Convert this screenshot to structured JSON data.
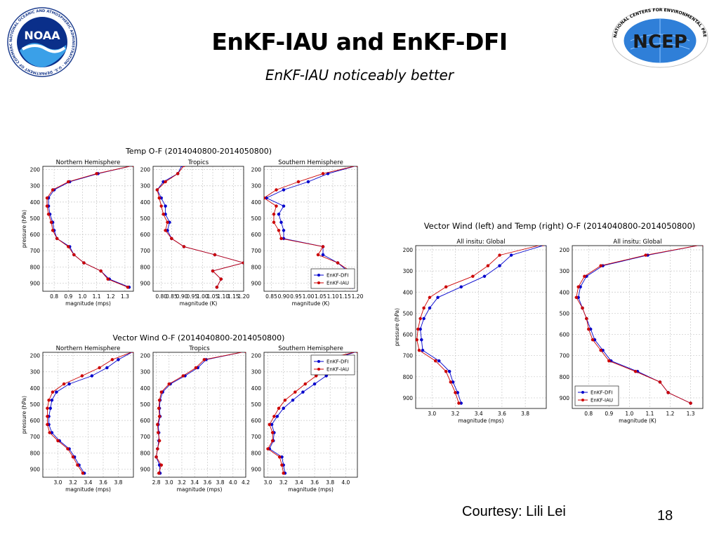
{
  "slide": {
    "title": "EnKF-IAU and EnKF-DFI",
    "subtitle": "EnKF-IAU noticeably better",
    "courtesy": "Courtesy: Lili Lei",
    "page_number": "18"
  },
  "logos": {
    "noaa": {
      "name": "noaa-logo",
      "text": "NOAA",
      "ring_text": "NATIONAL OCEANIC AND ATMOSPHERIC ADMINISTRATION · U.S. DEPARTMENT OF COMMERCE"
    },
    "ncep": {
      "name": "ncep-logo",
      "text": "NCEP",
      "ring_text": "NATIONAL CENTERS FOR ENVIRONMENTAL PREDICTION"
    }
  },
  "colors": {
    "dfi": "#0000cc",
    "iau": "#cc0000",
    "grid": "#c8c8c8",
    "frame": "#000000"
  },
  "chart_data": [
    {
      "type": "line",
      "title": "Temp O-F (2014040800-2014050800)",
      "panels": [
        {
          "title": "Northern Hemisphere",
          "xlabel": "magnitude (mps)",
          "ylabel": "pressure (hPa)",
          "xlim": [
            0.72,
            1.36
          ],
          "xticks": [
            "0.8",
            "0.9",
            "1.0",
            "1.1",
            "1.2",
            "1.3"
          ],
          "xtick_values": [
            0.8,
            0.9,
            1.0,
            1.1,
            1.2,
            1.3
          ],
          "ylim": [
            950,
            180
          ],
          "yticks": [
            200,
            300,
            400,
            500,
            600,
            700,
            800,
            900
          ],
          "pressure": [
            175,
            225,
            275,
            325,
            375,
            425,
            475,
            525,
            575,
            625,
            675,
            725,
            775,
            825,
            875,
            925
          ],
          "series": [
            {
              "name": "EnKF-DFI",
              "values": [
                1.36,
                1.11,
                0.91,
                0.8,
                0.76,
                0.76,
                0.77,
                0.79,
                0.8,
                0.82,
                0.91,
                0.94,
                1.01,
                1.13,
                1.19,
                1.33
              ]
            },
            {
              "name": "EnKF-IAU",
              "values": [
                1.36,
                1.1,
                0.9,
                0.79,
                0.75,
                0.75,
                0.76,
                0.78,
                0.79,
                0.82,
                0.9,
                0.94,
                1.01,
                1.13,
                1.18,
                1.32
              ]
            }
          ],
          "legend": null
        },
        {
          "title": "Tropics",
          "xlabel": "magnitude (K)",
          "xlim": [
            0.76,
            1.2
          ],
          "xticks": [
            "0.80",
            "0.85",
            "0.90",
            "0.95",
            "1.00",
            "1.05",
            "1.10",
            "1.15",
            "1.20"
          ],
          "xtick_values": [
            0.8,
            0.85,
            0.9,
            0.95,
            1.0,
            1.05,
            1.1,
            1.15,
            1.2
          ],
          "ylim": [
            950,
            180
          ],
          "yticks": [
            200,
            300,
            400,
            500,
            600,
            700,
            800,
            900
          ],
          "pressure": [
            175,
            225,
            275,
            325,
            375,
            425,
            475,
            525,
            575,
            625,
            675,
            725,
            775,
            825,
            875,
            925
          ],
          "series": [
            {
              "name": "EnKF-DFI",
              "values": [
                0.9,
                0.88,
                0.81,
                0.78,
                0.8,
                0.82,
                0.82,
                0.84,
                0.83,
                0.85,
                0.91,
                1.06,
                1.2,
                1.05,
                1.09,
                1.07
              ]
            },
            {
              "name": "EnKF-IAU",
              "values": [
                0.91,
                0.88,
                0.82,
                0.78,
                0.79,
                0.8,
                0.81,
                0.83,
                0.82,
                0.85,
                0.91,
                1.06,
                1.2,
                1.05,
                1.09,
                1.07
              ]
            }
          ],
          "legend": null
        },
        {
          "title": "Southern Hemisphere",
          "xlabel": "magnitude (K)",
          "xlim": [
            0.82,
            1.2
          ],
          "xticks": [
            "0.85",
            "0.90",
            "0.95",
            "1.00",
            "1.05",
            "1.10",
            "1.15",
            "1.20"
          ],
          "xtick_values": [
            0.85,
            0.9,
            0.95,
            1.0,
            1.05,
            1.1,
            1.15,
            1.2
          ],
          "ylim": [
            950,
            180
          ],
          "yticks": [
            200,
            300,
            400,
            500,
            600,
            700,
            800,
            900
          ],
          "pressure": [
            175,
            225,
            275,
            325,
            375,
            425,
            475,
            525,
            575,
            625,
            675,
            725,
            775,
            825,
            875,
            925
          ],
          "series": [
            {
              "name": "EnKF-DFI",
              "values": [
                1.2,
                1.08,
                1.0,
                0.9,
                0.83,
                0.9,
                0.88,
                0.89,
                0.9,
                0.9,
                1.06,
                1.06,
                1.12,
                1.16,
                1.14,
                1.18
              ]
            },
            {
              "name": "EnKF-IAU",
              "values": [
                1.2,
                1.06,
                0.96,
                0.87,
                0.82,
                0.87,
                0.86,
                0.86,
                0.88,
                0.89,
                1.06,
                1.04,
                1.12,
                1.17,
                1.15,
                1.17
              ]
            }
          ],
          "legend": {
            "entries": [
              "EnKF-DFI",
              "EnKF-IAU"
            ],
            "placement": "lower-right"
          }
        }
      ]
    },
    {
      "type": "line",
      "title": "Vector Wind O-F (2014040800-2014050800)",
      "panels": [
        {
          "title": "Northern Hemisphere",
          "xlabel": "magnitude (mps)",
          "ylabel": "pressure (hPa)",
          "xlim": [
            2.8,
            4.0
          ],
          "xticks": [
            "3.0",
            "3.2",
            "3.4",
            "3.6",
            "3.8"
          ],
          "xtick_values": [
            3.0,
            3.2,
            3.4,
            3.6,
            3.8
          ],
          "ylim": [
            950,
            180
          ],
          "yticks": [
            200,
            300,
            400,
            500,
            600,
            700,
            800,
            900
          ],
          "pressure": [
            175,
            225,
            275,
            325,
            375,
            425,
            475,
            525,
            575,
            625,
            675,
            725,
            775,
            825,
            875,
            925
          ],
          "series": [
            {
              "name": "EnKF-DFI",
              "values": [
                4.0,
                3.8,
                3.65,
                3.45,
                3.15,
                2.98,
                2.92,
                2.9,
                2.88,
                2.88,
                2.92,
                3.02,
                3.15,
                3.22,
                3.28,
                3.35
              ]
            },
            {
              "name": "EnKF-IAU",
              "values": [
                4.0,
                3.72,
                3.55,
                3.32,
                3.08,
                2.93,
                2.88,
                2.86,
                2.86,
                2.86,
                2.89,
                3.0,
                3.13,
                3.2,
                3.26,
                3.33
              ]
            }
          ],
          "legend": null
        },
        {
          "title": "Tropics",
          "xlabel": "magnitude (mps)",
          "xlim": [
            2.75,
            4.2
          ],
          "xticks": [
            "2.8",
            "3.0",
            "3.2",
            "3.4",
            "3.6",
            "3.8",
            "4.0",
            "4.2"
          ],
          "xtick_values": [
            2.8,
            3.0,
            3.2,
            3.4,
            3.6,
            3.8,
            4.0,
            4.2
          ],
          "ylim": [
            950,
            180
          ],
          "yticks": [
            200,
            300,
            400,
            500,
            600,
            700,
            800,
            900
          ],
          "pressure": [
            175,
            225,
            275,
            325,
            375,
            425,
            475,
            525,
            575,
            625,
            675,
            725,
            775,
            825,
            875,
            925
          ],
          "series": [
            {
              "name": "EnKF-DFI",
              "values": [
                4.2,
                3.58,
                3.45,
                3.25,
                3.02,
                2.9,
                2.86,
                2.85,
                2.86,
                2.83,
                2.84,
                2.84,
                2.82,
                2.8,
                2.85,
                2.86
              ]
            },
            {
              "name": "EnKF-IAU",
              "values": [
                4.2,
                3.55,
                3.42,
                3.22,
                3.0,
                2.88,
                2.85,
                2.84,
                2.85,
                2.82,
                2.83,
                2.85,
                2.82,
                2.8,
                2.88,
                2.84
              ]
            }
          ],
          "legend": null
        },
        {
          "title": "Southern Hemisphere",
          "xlabel": "magnitude (mps)",
          "xlim": [
            2.95,
            4.15
          ],
          "xticks": [
            "3.0",
            "3.2",
            "3.4",
            "3.6",
            "3.8",
            "4.0"
          ],
          "xtick_values": [
            3.0,
            3.2,
            3.4,
            3.6,
            3.8,
            4.0
          ],
          "ylim": [
            950,
            180
          ],
          "yticks": [
            200,
            300,
            400,
            500,
            600,
            700,
            800,
            900
          ],
          "pressure": [
            175,
            225,
            275,
            325,
            375,
            425,
            475,
            525,
            575,
            625,
            675,
            725,
            775,
            825,
            875,
            925
          ],
          "series": [
            {
              "name": "EnKF-DFI",
              "values": [
                4.15,
                3.82,
                3.92,
                3.75,
                3.6,
                3.45,
                3.32,
                3.2,
                3.12,
                3.05,
                3.08,
                3.07,
                3.02,
                3.18,
                3.2,
                3.22
              ]
            },
            {
              "name": "EnKF-IAU",
              "values": [
                4.15,
                3.72,
                3.78,
                3.62,
                3.48,
                3.35,
                3.22,
                3.14,
                3.08,
                3.02,
                3.06,
                3.06,
                3.0,
                3.15,
                3.18,
                3.2
              ]
            }
          ],
          "legend": {
            "entries": [
              "EnKF-DFI",
              "EnKF-IAU"
            ],
            "placement": "top-right"
          }
        }
      ]
    },
    {
      "type": "line",
      "title": "Vector Wind (left) and Temp (right) O-F (2014040800-2014050800)",
      "panels": [
        {
          "title": "All insitu: Global",
          "xlabel": "magnitude (mps)",
          "ylabel": "pressure (hPa)",
          "xlim": [
            2.86,
            3.98
          ],
          "xticks": [
            "3.0",
            "3.2",
            "3.4",
            "3.6",
            "3.8"
          ],
          "xtick_values": [
            3.0,
            3.2,
            3.4,
            3.6,
            3.8
          ],
          "ylim": [
            950,
            180
          ],
          "yticks": [
            200,
            300,
            400,
            500,
            600,
            700,
            800,
            900
          ],
          "pressure": [
            175,
            225,
            275,
            325,
            375,
            425,
            475,
            525,
            575,
            625,
            675,
            725,
            775,
            825,
            875,
            925
          ],
          "series": [
            {
              "name": "EnKF-DFI",
              "values": [
                3.98,
                3.68,
                3.58,
                3.45,
                3.25,
                3.05,
                2.98,
                2.93,
                2.9,
                2.91,
                2.92,
                3.06,
                3.15,
                3.18,
                3.22,
                3.25
              ]
            },
            {
              "name": "EnKF-IAU",
              "values": [
                3.95,
                3.58,
                3.48,
                3.35,
                3.12,
                2.98,
                2.93,
                2.9,
                2.88,
                2.87,
                2.89,
                3.03,
                3.12,
                3.16,
                3.2,
                3.23
              ]
            }
          ],
          "legend": null
        },
        {
          "title": "All insitu: Global",
          "xlabel": "magnitude (K)",
          "xlim": [
            0.72,
            1.36
          ],
          "xticks": [
            "0.8",
            "0.9",
            "1.0",
            "1.1",
            "1.2",
            "1.3"
          ],
          "xtick_values": [
            0.8,
            0.9,
            1.0,
            1.1,
            1.2,
            1.3
          ],
          "ylim": [
            950,
            180
          ],
          "yticks": [
            200,
            300,
            400,
            500,
            600,
            700,
            800,
            900
          ],
          "pressure": [
            175,
            225,
            275,
            325,
            375,
            425,
            475,
            525,
            575,
            625,
            675,
            725,
            775,
            825,
            875,
            925
          ],
          "series": [
            {
              "name": "EnKF-DFI",
              "values": [
                1.36,
                1.09,
                0.87,
                0.79,
                0.76,
                0.75,
                0.77,
                0.79,
                0.81,
                0.83,
                0.87,
                0.91,
                1.04,
                1.15,
                1.19,
                1.3
              ]
            },
            {
              "name": "EnKF-IAU",
              "values": [
                1.36,
                1.08,
                0.86,
                0.78,
                0.75,
                0.74,
                0.77,
                0.79,
                0.8,
                0.82,
                0.86,
                0.9,
                1.03,
                1.15,
                1.19,
                1.3
              ]
            }
          ],
          "legend": {
            "entries": [
              "EnKF-DFI",
              "EnKF-IAU"
            ],
            "placement": "lower-left"
          }
        }
      ]
    }
  ]
}
